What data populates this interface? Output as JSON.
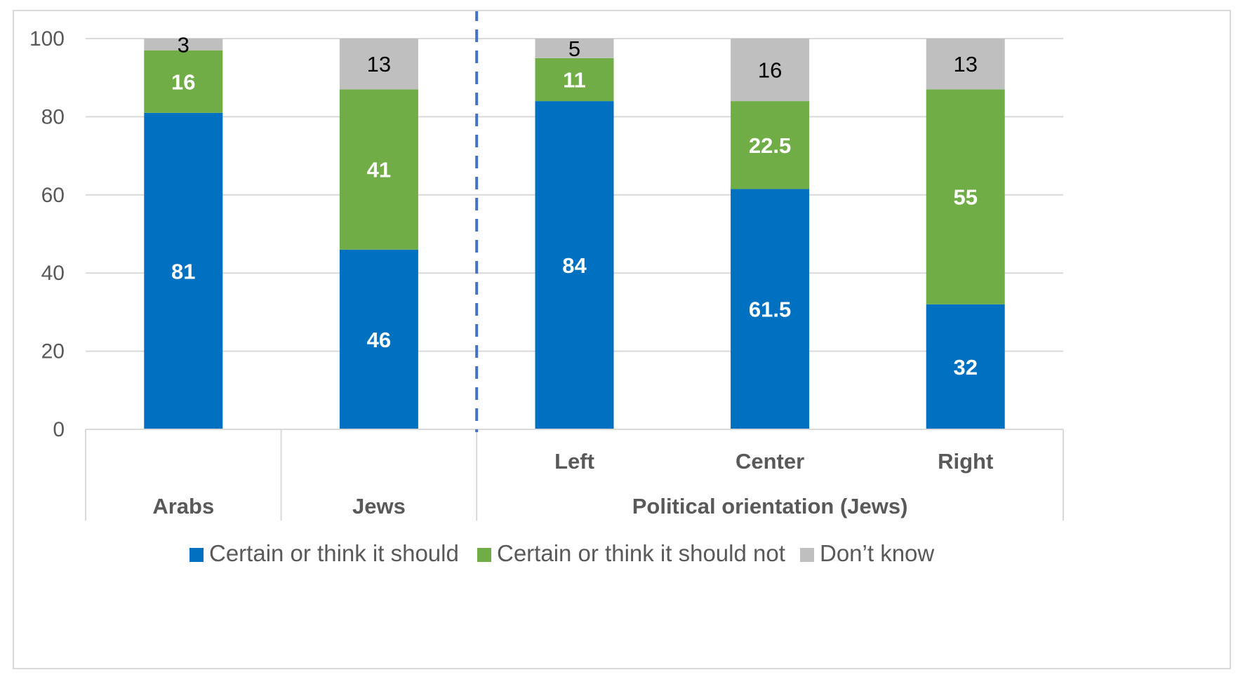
{
  "chart_data": {
    "type": "bar",
    "stacked": true,
    "categories": [
      "Arabs",
      "Jews",
      "Left",
      "Center",
      "Right"
    ],
    "group_labels": [
      {
        "label": "Arabs",
        "categories": [
          "Arabs"
        ]
      },
      {
        "label": "Jews",
        "categories": [
          "Jews"
        ]
      },
      {
        "label": "Political orientation (Jews)",
        "categories": [
          "Left",
          "Center",
          "Right"
        ]
      }
    ],
    "series": [
      {
        "name": "Certain or think it should",
        "color": "#0070c0",
        "values": [
          "81",
          "46",
          "84",
          "61.5",
          "32"
        ],
        "label_color": "white",
        "label_bold": true
      },
      {
        "name": "Certain or think it should not",
        "color": "#70ad47",
        "values": [
          "16",
          "41",
          "11",
          "22.5",
          "55"
        ],
        "label_color": "white",
        "label_bold": true
      },
      {
        "name": "Don’t know",
        "color": "#bfbfbf",
        "values": [
          "3",
          "13",
          "5",
          "16",
          "13"
        ],
        "label_color": "black",
        "label_bold": false
      }
    ],
    "ylim": [
      0,
      100
    ],
    "yticks": [
      "0",
      "20",
      "40",
      "60",
      "80",
      "100"
    ],
    "xlabel": "",
    "ylabel": "",
    "title": "",
    "grid": true,
    "legend_position": "bottom",
    "separator": {
      "style": "dashed",
      "color": "#4472c4",
      "between": [
        "Jews",
        "Left"
      ]
    }
  }
}
